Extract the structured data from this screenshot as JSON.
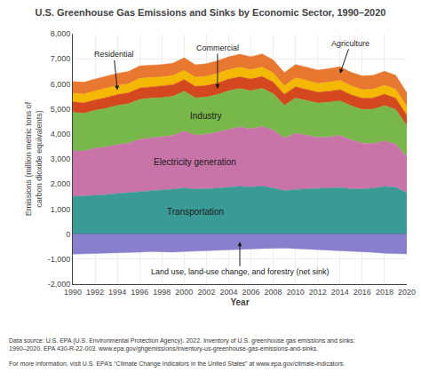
{
  "chart_data": {
    "type": "area",
    "stacked": true,
    "title": "U.S. Greenhouse Gas Emissions and Sinks by Economic Sector, 1990–2020",
    "x_label": "Year",
    "y_label": "Emissions (million metric tons of\ncarbon dioxide equivalents)",
    "x": [
      1990,
      1991,
      1992,
      1993,
      1994,
      1995,
      1996,
      1997,
      1998,
      1999,
      2000,
      2001,
      2002,
      2003,
      2004,
      2005,
      2006,
      2007,
      2008,
      2009,
      2010,
      2011,
      2012,
      2013,
      2014,
      2015,
      2016,
      2017,
      2018,
      2019,
      2020
    ],
    "series": [
      {
        "name": "Transportation",
        "color": "#3a9a96",
        "values": [
          1500,
          1520,
          1560,
          1570,
          1620,
          1660,
          1700,
          1730,
          1760,
          1790,
          1840,
          1790,
          1800,
          1830,
          1870,
          1900,
          1880,
          1910,
          1840,
          1730,
          1780,
          1790,
          1820,
          1840,
          1860,
          1800,
          1800,
          1830,
          1900,
          1870,
          1650
        ]
      },
      {
        "name": "Electricity generation",
        "color": "#c874a8",
        "values": [
          1820,
          1800,
          1870,
          1910,
          1950,
          1970,
          2090,
          2110,
          2130,
          2150,
          2280,
          2160,
          2190,
          2240,
          2310,
          2380,
          2330,
          2390,
          2310,
          2100,
          2250,
          2160,
          2040,
          2040,
          2080,
          1960,
          1830,
          1790,
          1820,
          1720,
          1450
        ]
      },
      {
        "name": "Industry",
        "color": "#78b84a",
        "values": [
          1540,
          1500,
          1510,
          1540,
          1570,
          1570,
          1590,
          1590,
          1560,
          1560,
          1580,
          1490,
          1480,
          1500,
          1540,
          1530,
          1510,
          1520,
          1460,
          1310,
          1400,
          1380,
          1370,
          1380,
          1380,
          1360,
          1350,
          1370,
          1410,
          1390,
          1230
        ]
      },
      {
        "name": "Commercial",
        "color": "#d44820",
        "values": [
          420,
          420,
          420,
          430,
          430,
          440,
          450,
          450,
          460,
          465,
          470,
          460,
          460,
          460,
          470,
          470,
          470,
          475,
          460,
          440,
          450,
          445,
          440,
          445,
          450,
          445,
          445,
          450,
          455,
          450,
          420
        ]
      },
      {
        "name": "Residential",
        "color": "#f5b800",
        "values": [
          340,
          350,
          355,
          380,
          360,
          360,
          390,
          370,
          360,
          365,
          370,
          360,
          365,
          380,
          370,
          380,
          370,
          375,
          360,
          340,
          360,
          355,
          345,
          360,
          370,
          350,
          340,
          345,
          360,
          355,
          330
        ]
      },
      {
        "name": "Agriculture",
        "color": "#e87830",
        "values": [
          470,
          475,
          475,
          480,
          485,
          490,
          495,
          495,
          495,
          495,
          500,
          500,
          505,
          510,
          515,
          520,
          520,
          525,
          525,
          525,
          530,
          535,
          535,
          540,
          545,
          545,
          550,
          555,
          560,
          560,
          560
        ]
      },
      {
        "name": "Land use, land-use change, and forestry (net sink)",
        "color": "#8880cc",
        "values": [
          -800,
          -790,
          -770,
          -755,
          -750,
          -740,
          -720,
          -700,
          -710,
          -720,
          -700,
          -680,
          -660,
          -650,
          -640,
          -615,
          -600,
          -580,
          -570,
          -560,
          -580,
          -600,
          -620,
          -630,
          -660,
          -680,
          -700,
          -730,
          -770,
          -780,
          -790
        ]
      }
    ],
    "xlim": [
      1990,
      2020
    ],
    "xticks": [
      1990,
      1992,
      1994,
      1996,
      1998,
      2000,
      2002,
      2004,
      2006,
      2008,
      2010,
      2012,
      2014,
      2016,
      2018,
      2020
    ],
    "ylim": [
      -2000,
      8000
    ],
    "yticks": [
      {
        "value": -2000,
        "label": "-2,000"
      },
      {
        "value": -1000,
        "label": "-1,000"
      },
      0,
      {
        "value": 1000,
        "label": "1,000"
      },
      {
        "value": 2000,
        "label": "2,000"
      },
      {
        "value": 3000,
        "label": "3,000"
      },
      {
        "value": 4000,
        "label": "4,000"
      },
      {
        "value": 5000,
        "label": "5,000"
      },
      {
        "value": 6000,
        "label": "6,000"
      },
      {
        "value": 7000,
        "label": "7,000"
      },
      {
        "value": 8000,
        "label": "8,000"
      }
    ],
    "grid": true,
    "legend": false,
    "notes": [
      "Data source: U.S. EPA (U.S. Environmental Protection Agency). 2022. Inventory of U.S. greenhouse gas emissions and sinks:\n1990–2020. EPA 430-R-22-003. www.epa.gov/ghgemissions/inventory-us-greenhouse-gas-emissions-and-sinks.",
      "For more information, visit U.S. EPA’s “Climate Change Indicators in the United States” at www.epa.gov/climate-indicators."
    ]
  }
}
